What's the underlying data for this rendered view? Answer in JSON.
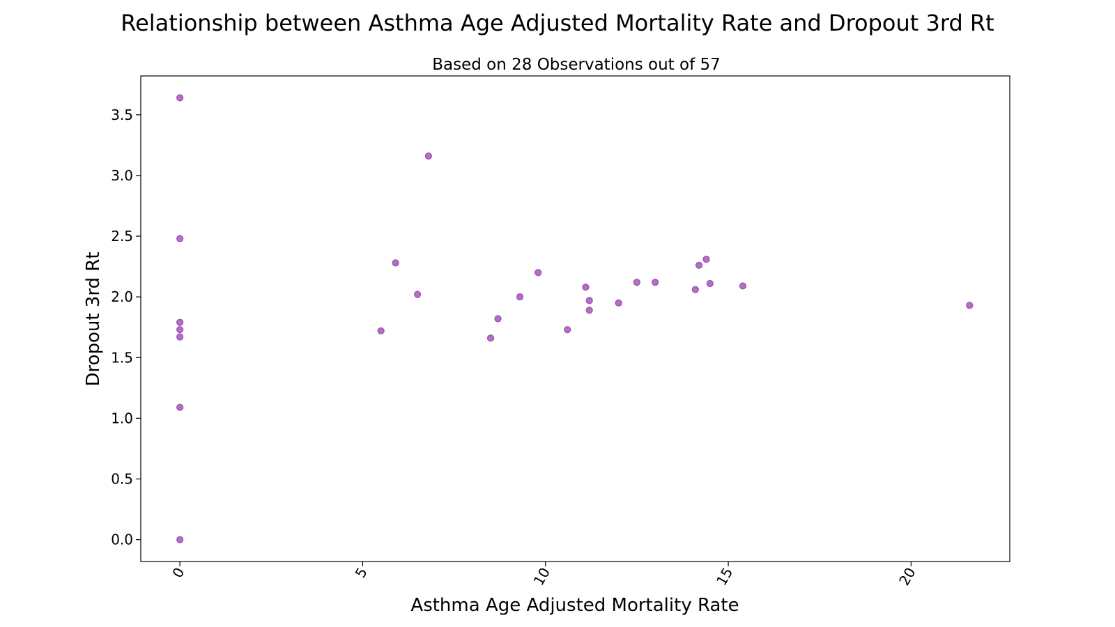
{
  "chart_data": {
    "type": "scatter",
    "title": "Relationship between Asthma Age Adjusted Mortality Rate and Dropout 3rd Rt",
    "subtitle": "Based on 28 Observations out of 57",
    "xlabel": "Asthma Age Adjusted Mortality Rate",
    "ylabel": "Dropout 3rd Rt",
    "xlim": [
      -1.07,
      22.7
    ],
    "ylim": [
      -0.18,
      3.82
    ],
    "xticks": [
      0,
      5,
      10,
      15,
      20
    ],
    "xtick_labels": [
      "0",
      "5",
      "10",
      "15",
      "20"
    ],
    "xtick_rotation": "rotated ~60°",
    "yticks": [
      0.0,
      0.5,
      1.0,
      1.5,
      2.0,
      2.5,
      3.0,
      3.5
    ],
    "ytick_labels": [
      "0.0",
      "0.5",
      "1.0",
      "1.5",
      "2.0",
      "2.5",
      "3.0",
      "3.5"
    ],
    "grid": false,
    "marker_color": "#9b4fb0",
    "marker_fill": "#b36fc4",
    "points": [
      {
        "x": 0.0,
        "y": 3.64
      },
      {
        "x": 0.0,
        "y": 2.48
      },
      {
        "x": 0.0,
        "y": 1.79
      },
      {
        "x": 0.0,
        "y": 1.73
      },
      {
        "x": 0.0,
        "y": 1.67
      },
      {
        "x": 0.0,
        "y": 1.09
      },
      {
        "x": 0.0,
        "y": 0.0
      },
      {
        "x": 5.5,
        "y": 1.72
      },
      {
        "x": 5.9,
        "y": 2.28
      },
      {
        "x": 6.5,
        "y": 2.02
      },
      {
        "x": 6.8,
        "y": 3.16
      },
      {
        "x": 8.5,
        "y": 1.66
      },
      {
        "x": 8.7,
        "y": 1.82
      },
      {
        "x": 9.3,
        "y": 2.0
      },
      {
        "x": 9.8,
        "y": 2.2
      },
      {
        "x": 10.6,
        "y": 1.73
      },
      {
        "x": 11.1,
        "y": 2.08
      },
      {
        "x": 11.2,
        "y": 1.97
      },
      {
        "x": 11.2,
        "y": 1.89
      },
      {
        "x": 12.0,
        "y": 1.95
      },
      {
        "x": 12.5,
        "y": 2.12
      },
      {
        "x": 13.0,
        "y": 2.12
      },
      {
        "x": 14.1,
        "y": 2.06
      },
      {
        "x": 14.2,
        "y": 2.26
      },
      {
        "x": 14.4,
        "y": 2.31
      },
      {
        "x": 14.5,
        "y": 2.11
      },
      {
        "x": 15.4,
        "y": 2.09
      },
      {
        "x": 21.6,
        "y": 1.93
      }
    ]
  }
}
